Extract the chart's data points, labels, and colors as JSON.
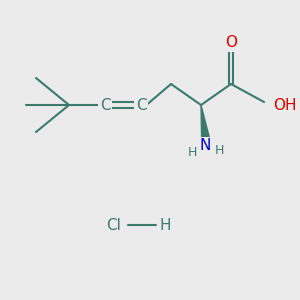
{
  "bg_color": "#ebebeb",
  "bond_color": "#3d7a6e",
  "bond_lw": 1.5,
  "atom_colors": {
    "O": "#e00000",
    "N": "#0000cc",
    "C": "#3d7a6e",
    "H": "#3d7a6e",
    "Cl": "#3d7a6e"
  },
  "font_size_atom": 11,
  "font_size_small": 9,
  "wedge_color": "#3d7a6e"
}
